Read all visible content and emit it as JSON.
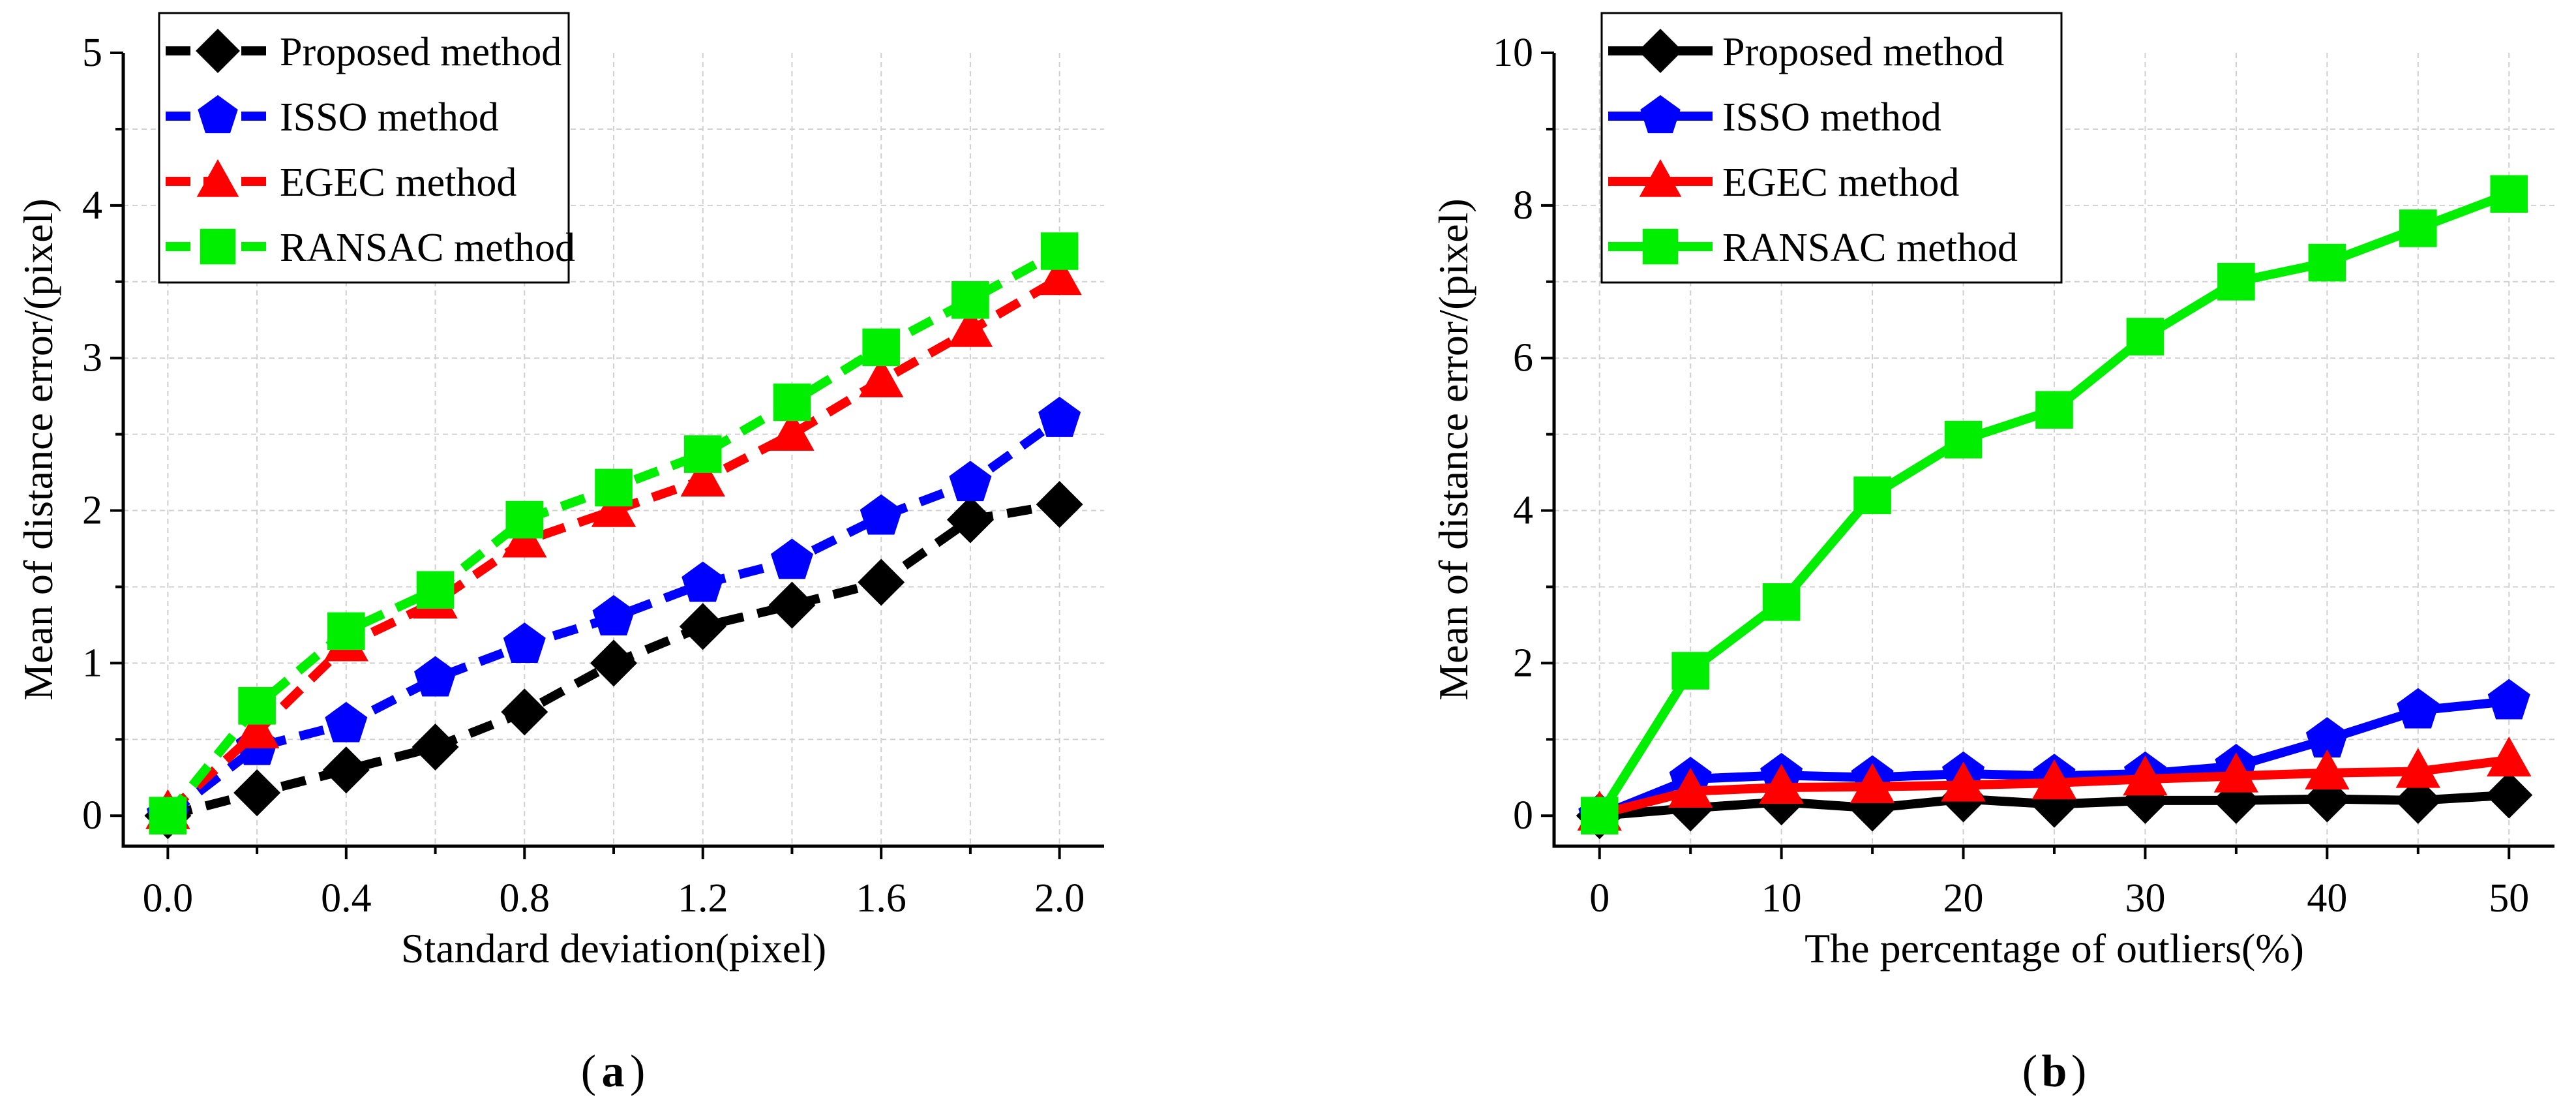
{
  "colors": {
    "proposed": "#000000",
    "isso": "#0000ff",
    "egec": "#ff0000",
    "ransac": "#00ee00"
  },
  "chart_data": [
    {
      "type": "line",
      "caption": "(a)",
      "line_style": "dashed",
      "xlabel": "Standard deviation(pixel)",
      "ylabel": "Mean of distance error/(pixel)",
      "xlim": [
        -0.1,
        2.1
      ],
      "ylim": [
        -0.2,
        5
      ],
      "xticks": [
        "0.0",
        "0.4",
        "0.8",
        "1.2",
        "1.6",
        "2.0"
      ],
      "xtick_values": [
        0,
        0.4,
        0.8,
        1.2,
        1.6,
        2.0
      ],
      "yticks": [
        "0",
        "1",
        "2",
        "3",
        "4",
        "5"
      ],
      "ytick_values": [
        0,
        1,
        2,
        3,
        4,
        5
      ],
      "grid": true,
      "legend_position": "top-left",
      "x": [
        0,
        0.2,
        0.4,
        0.6,
        0.8,
        1.0,
        1.2,
        1.4,
        1.6,
        1.8,
        2.0
      ],
      "series": [
        {
          "name": "Proposed method",
          "key": "proposed",
          "marker": "diamond",
          "values": [
            0,
            0.15,
            0.3,
            0.45,
            0.68,
            1.0,
            1.24,
            1.38,
            1.53,
            1.94,
            2.04
          ]
        },
        {
          "name": "ISSO method",
          "key": "isso",
          "marker": "pentagon",
          "values": [
            0,
            0.45,
            0.6,
            0.9,
            1.12,
            1.3,
            1.52,
            1.67,
            1.96,
            2.18,
            2.6
          ]
        },
        {
          "name": "EGEC method",
          "key": "egec",
          "marker": "triangle",
          "values": [
            0.02,
            0.55,
            1.12,
            1.4,
            1.8,
            2.0,
            2.2,
            2.5,
            2.85,
            3.18,
            3.52
          ]
        },
        {
          "name": "RANSAC method",
          "key": "ransac",
          "marker": "square",
          "values": [
            0,
            0.72,
            1.21,
            1.48,
            1.94,
            2.15,
            2.37,
            2.71,
            3.07,
            3.38,
            3.7
          ]
        }
      ]
    },
    {
      "type": "line",
      "caption": "(b)",
      "line_style": "solid",
      "xlabel": "The percentage of outliers(%)",
      "ylabel": "Mean of distance error/(pixel)",
      "xlim": [
        -2.5,
        52.5
      ],
      "ylim": [
        -0.4,
        10
      ],
      "xticks": [
        "0",
        "10",
        "20",
        "30",
        "40",
        "50"
      ],
      "xtick_values": [
        0,
        10,
        20,
        30,
        40,
        50
      ],
      "yticks": [
        "0",
        "2",
        "4",
        "6",
        "8",
        "10"
      ],
      "ytick_values": [
        0,
        2,
        4,
        6,
        8,
        10
      ],
      "grid": true,
      "legend_position": "top-left",
      "x": [
        0,
        5,
        10,
        15,
        20,
        25,
        30,
        35,
        40,
        45,
        50
      ],
      "series": [
        {
          "name": "Proposed method",
          "key": "proposed",
          "marker": "diamond",
          "values": [
            0,
            0.1,
            0.18,
            0.1,
            0.22,
            0.15,
            0.2,
            0.2,
            0.22,
            0.2,
            0.27
          ]
        },
        {
          "name": "ISSO method",
          "key": "isso",
          "marker": "pentagon",
          "values": [
            0,
            0.48,
            0.53,
            0.5,
            0.55,
            0.52,
            0.55,
            0.65,
            1.0,
            1.38,
            1.5
          ]
        },
        {
          "name": "EGEC method",
          "key": "egec",
          "marker": "triangle",
          "values": [
            0.02,
            0.32,
            0.37,
            0.38,
            0.4,
            0.43,
            0.48,
            0.52,
            0.56,
            0.58,
            0.73
          ]
        },
        {
          "name": "RANSAC method",
          "key": "ransac",
          "marker": "square",
          "values": [
            0,
            1.9,
            2.8,
            4.2,
            4.93,
            5.32,
            6.28,
            7.0,
            7.25,
            7.7,
            8.15
          ]
        }
      ]
    }
  ]
}
